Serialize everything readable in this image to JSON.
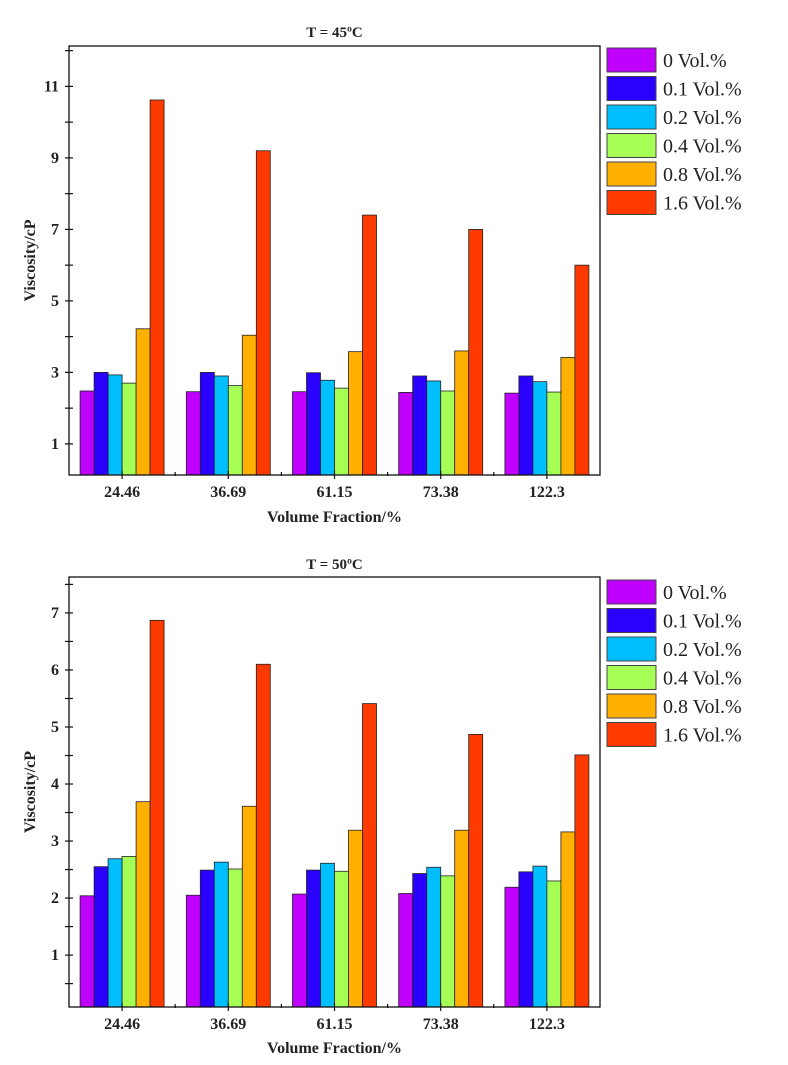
{
  "chart_data": [
    {
      "type": "bar",
      "title": "T = 45ºC",
      "xlabel": "Volume Fraction/%",
      "ylabel": "Viscosity/cP",
      "ylim": [
        0.13,
        12.13
      ],
      "yticks": [
        1,
        3,
        5,
        7,
        9,
        11
      ],
      "grid": false,
      "legend_position": "right",
      "categories": [
        "24.46",
        "36.69",
        "61.15",
        "73.38",
        "122.3"
      ],
      "series": [
        {
          "name": "0 Vol.%",
          "color": "#c000ff",
          "values": [
            2.48,
            2.46,
            2.46,
            2.44,
            2.42
          ]
        },
        {
          "name": "0.1 Vol.%",
          "color": "#2a00ff",
          "values": [
            3.0,
            3.0,
            2.99,
            2.9,
            2.9
          ]
        },
        {
          "name": "0.2 Vol.%",
          "color": "#00bfff",
          "values": [
            2.93,
            2.9,
            2.78,
            2.76,
            2.74
          ]
        },
        {
          "name": "0.4 Vol.%",
          "color": "#a6ff55",
          "values": [
            2.7,
            2.63,
            2.56,
            2.48,
            2.45
          ]
        },
        {
          "name": "0.8 Vol.%",
          "color": "#ffb000",
          "values": [
            4.22,
            4.04,
            3.58,
            3.6,
            3.42
          ]
        },
        {
          "name": "1.6 Vol.%",
          "color": "#ff3a00",
          "values": [
            10.62,
            9.2,
            7.4,
            7.0,
            6.0
          ]
        }
      ]
    },
    {
      "type": "bar",
      "title": "T = 50ºC",
      "xlabel": "Volume Fraction/%",
      "ylabel": "Viscosity/cP",
      "ylim": [
        0.09,
        7.63
      ],
      "yticks": [
        1,
        2,
        3,
        4,
        5,
        6,
        7
      ],
      "grid": false,
      "legend_position": "right",
      "categories": [
        "24.46",
        "36.69",
        "61.15",
        "73.38",
        "122.3"
      ],
      "series": [
        {
          "name": "0 Vol.%",
          "color": "#c000ff",
          "values": [
            2.04,
            2.05,
            2.07,
            2.08,
            2.19
          ]
        },
        {
          "name": "0.1 Vol.%",
          "color": "#2a00ff",
          "values": [
            2.55,
            2.49,
            2.49,
            2.43,
            2.46
          ]
        },
        {
          "name": "0.2 Vol.%",
          "color": "#00bfff",
          "values": [
            2.69,
            2.63,
            2.61,
            2.54,
            2.56
          ]
        },
        {
          "name": "0.4 Vol.%",
          "color": "#a6ff55",
          "values": [
            2.73,
            2.51,
            2.47,
            2.39,
            2.3
          ]
        },
        {
          "name": "0.8 Vol.%",
          "color": "#ffb000",
          "values": [
            3.69,
            3.61,
            3.19,
            3.19,
            3.16
          ]
        },
        {
          "name": "1.6 Vol.%",
          "color": "#ff3a00",
          "values": [
            6.87,
            6.1,
            5.41,
            4.87,
            4.51
          ]
        }
      ]
    }
  ]
}
